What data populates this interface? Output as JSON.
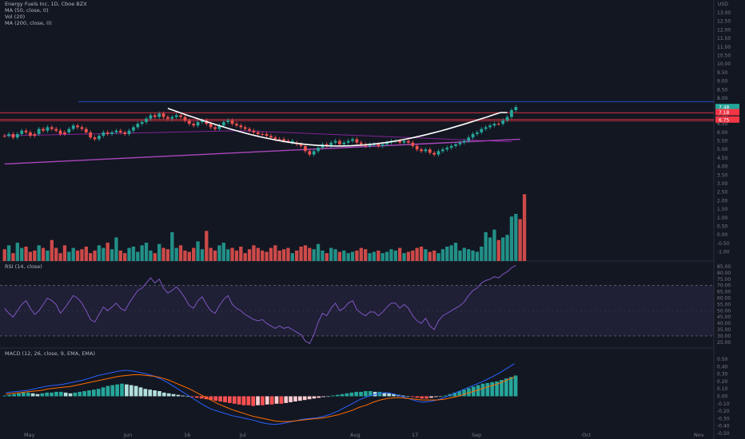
{
  "header": {
    "title": "Energy Fuels Inc, 1D, Cboe BZX",
    "ind_ma50": "MA (50, close, 0)",
    "ind_vol": "Vol (20)",
    "ind_ma200": "MA (200, close, 0)",
    "currency": "USD"
  },
  "rsi_label": "RSI (14, close)",
  "macd_label": "MACD (12, 26, close, 9, EMA, EMA)",
  "colors": {
    "background": "#131722",
    "up": "#26a69a",
    "down": "#ef5350",
    "ma50": "#9c27b0",
    "ma200": "#ab47bc",
    "rsi_line": "#7e57c2",
    "macd_line": "#2962ff",
    "signal_line": "#ff6d00",
    "annotation": "#ffffff"
  },
  "chart_data": [
    {
      "type": "candlestick",
      "x_ticks": [
        "May",
        "Jun",
        "16",
        "Jul",
        "Aug",
        "17",
        "Sep",
        "Oct",
        "Nov"
      ],
      "y_ticks": [
        "13.00",
        "12.50",
        "12.00",
        "11.50",
        "11.00",
        "10.50",
        "10.00",
        "9.50",
        "9.00",
        "8.50",
        "8.00",
        "7.50",
        "7.00",
        "6.50",
        "6.00",
        "5.50",
        "5.00",
        "4.50",
        "4.00",
        "3.50",
        "3.00",
        "2.50",
        "2.00",
        "1.50",
        "1.00",
        "0.50",
        "0.00",
        "-0.50",
        "-1.00"
      ],
      "price_labels": [
        "7.48",
        "7.18",
        "6.75"
      ],
      "horizontal_lines": [
        7.8,
        7.15,
        6.75,
        6.68
      ],
      "closes": [
        5.8,
        5.9,
        5.7,
        5.9,
        6.1,
        6.0,
        5.8,
        5.9,
        6.2,
        6.1,
        6.3,
        6.2,
        6.1,
        5.9,
        6.0,
        6.2,
        6.4,
        6.3,
        6.2,
        6.0,
        5.7,
        5.6,
        5.8,
        6.0,
        5.9,
        6.0,
        6.1,
        6.0,
        5.9,
        6.1,
        6.3,
        6.5,
        6.6,
        6.8,
        7.0,
        6.9,
        7.1,
        6.9,
        6.8,
        6.9,
        7.0,
        6.9,
        6.7,
        6.5,
        6.4,
        6.6,
        6.7,
        6.5,
        6.3,
        6.2,
        6.4,
        6.6,
        6.7,
        6.5,
        6.4,
        6.3,
        6.2,
        6.1,
        6.0,
        5.9,
        5.9,
        5.8,
        5.7,
        5.6,
        5.6,
        5.5,
        5.5,
        5.4,
        5.3,
        5.2,
        4.9,
        4.7,
        4.9,
        5.1,
        5.3,
        5.2,
        5.4,
        5.5,
        5.3,
        5.4,
        5.5,
        5.6,
        5.4,
        5.3,
        5.2,
        5.3,
        5.3,
        5.2,
        5.3,
        5.4,
        5.5,
        5.5,
        5.4,
        5.5,
        5.4,
        5.2,
        5.0,
        4.9,
        5.0,
        4.8,
        4.7,
        4.9,
        5.0,
        5.1,
        5.2,
        5.3,
        5.4,
        5.5,
        5.7,
        5.9,
        6.0,
        6.2,
        6.3,
        6.4,
        6.5,
        6.5,
        6.7,
        6.9,
        7.3,
        7.48
      ],
      "ma50_endpoints": [
        [
          0,
          5.8
        ],
        [
          55,
          6.1
        ],
        [
          118,
          5.45
        ]
      ],
      "ma200_endpoints": [
        [
          0,
          4.15
        ],
        [
          120,
          5.6
        ]
      ],
      "volume_axis": "0.00 - 2.50",
      "volume_scale": 2.5,
      "volumes": [
        0.45,
        0.6,
        0.3,
        0.7,
        0.5,
        0.55,
        0.35,
        0.4,
        0.6,
        0.5,
        0.4,
        0.8,
        0.5,
        0.3,
        0.6,
        0.35,
        0.5,
        0.4,
        0.45,
        0.55,
        0.3,
        0.4,
        0.6,
        0.5,
        0.7,
        0.45,
        0.9,
        0.4,
        0.3,
        0.5,
        0.55,
        0.35,
        0.6,
        0.7,
        0.4,
        0.3,
        0.65,
        0.5,
        0.45,
        1.1,
        0.5,
        0.6,
        0.4,
        0.35,
        0.5,
        0.75,
        0.45,
        1.15,
        0.5,
        0.4,
        0.6,
        0.7,
        0.45,
        0.5,
        0.4,
        0.55,
        0.3,
        0.45,
        0.6,
        0.5,
        0.4,
        0.35,
        0.5,
        0.6,
        0.4,
        0.45,
        0.5,
        0.3,
        0.4,
        0.55,
        0.6,
        0.5,
        0.45,
        0.65,
        0.4,
        0.3,
        0.5,
        0.45,
        0.35,
        0.4,
        0.3,
        0.35,
        0.4,
        0.5,
        0.45,
        0.3,
        0.35,
        0.4,
        0.3,
        0.35,
        0.45,
        0.4,
        0.5,
        0.3,
        0.35,
        0.4,
        0.5,
        0.55,
        0.45,
        0.35,
        0.4,
        0.3,
        0.45,
        0.55,
        0.6,
        0.7,
        0.4,
        0.5,
        0.45,
        0.4,
        0.35,
        0.55,
        1.1,
        0.9,
        1.2,
        0.8,
        0.9,
        1.0,
        1.7,
        1.8,
        1.6,
        2.55
      ],
      "up_days": [
        1,
        3,
        4,
        8,
        10,
        15,
        16,
        22,
        23,
        25,
        26,
        29,
        30,
        31,
        32,
        33,
        34,
        36,
        39,
        40,
        45,
        46,
        50,
        51,
        52,
        67,
        72,
        73,
        74,
        76,
        77,
        79,
        80,
        81,
        85,
        86,
        88,
        89,
        90,
        91,
        93,
        98,
        101,
        102,
        103,
        104,
        105,
        106,
        107,
        108,
        109,
        110,
        111,
        112,
        113,
        114,
        116,
        117,
        118,
        119
      ]
    },
    {
      "type": "line",
      "name": "RSI",
      "y_ticks": [
        "85.00",
        "80.00",
        "75.00",
        "70.00",
        "65.00",
        "60.00",
        "55.00",
        "50.00",
        "45.00",
        "40.00",
        "35.00",
        "30.00",
        "25.00"
      ],
      "band": [
        30,
        70
      ],
      "values": [
        52,
        48,
        45,
        50,
        55,
        58,
        52,
        47,
        50,
        55,
        60,
        58,
        55,
        48,
        52,
        57,
        62,
        60,
        56,
        50,
        43,
        41,
        47,
        53,
        50,
        53,
        56,
        52,
        50,
        56,
        61,
        66,
        68,
        72,
        76,
        72,
        75,
        68,
        64,
        66,
        69,
        65,
        60,
        54,
        52,
        58,
        61,
        55,
        50,
        48,
        54,
        59,
        62,
        55,
        52,
        50,
        47,
        45,
        43,
        42,
        43,
        40,
        38,
        36,
        38,
        36,
        37,
        35,
        33,
        31,
        26,
        24,
        31,
        41,
        48,
        46,
        52,
        56,
        50,
        52,
        56,
        58,
        51,
        48,
        46,
        49,
        49,
        46,
        49,
        53,
        56,
        56,
        52,
        55,
        52,
        46,
        42,
        40,
        44,
        38,
        35,
        42,
        46,
        48,
        50,
        52,
        54,
        57,
        62,
        66,
        68,
        72,
        74,
        75,
        77,
        76,
        79,
        81,
        84,
        86
      ]
    },
    {
      "type": "bar+line",
      "name": "MACD",
      "y_ticks": [
        "0.50",
        "0.40",
        "0.30",
        "0.20",
        "0.10",
        "0.00",
        "-0.10",
        "-0.20",
        "-0.30",
        "-0.40",
        "-0.50"
      ],
      "histogram": [
        0.01,
        0.02,
        0.03,
        0.04,
        0.05,
        0.05,
        0.04,
        0.03,
        0.04,
        0.05,
        0.05,
        0.06,
        0.06,
        0.05,
        0.04,
        0.05,
        0.06,
        0.07,
        0.08,
        0.09,
        0.1,
        0.12,
        0.14,
        0.15,
        0.16,
        0.17,
        0.16,
        0.15,
        0.14,
        0.12,
        0.1,
        0.09,
        0.08,
        0.07,
        0.05,
        0.04,
        0.03,
        0.02,
        0.01,
        0.0,
        -0.01,
        -0.02,
        -0.03,
        -0.04,
        -0.05,
        -0.06,
        -0.07,
        -0.08,
        -0.09,
        -0.1,
        -0.11,
        -0.12,
        -0.12,
        -0.13,
        -0.12,
        -0.12,
        -0.11,
        -0.11,
        -0.1,
        -0.1,
        -0.09,
        -0.08,
        -0.07,
        -0.06,
        -0.05,
        -0.04,
        -0.03,
        -0.02,
        -0.01,
        0.0,
        0.01,
        0.02,
        0.03,
        0.04,
        0.05,
        0.06,
        0.06,
        0.07,
        0.07,
        0.06,
        0.06,
        0.05,
        0.04,
        0.03,
        0.02,
        0.01,
        0.0,
        -0.01,
        -0.02,
        -0.03,
        -0.03,
        -0.02,
        -0.01,
        0.0,
        0.01,
        0.03,
        0.05,
        0.07,
        0.09,
        0.11,
        0.13,
        0.15,
        0.17,
        0.18,
        0.19,
        0.2,
        0.22,
        0.24,
        0.26,
        0.28
      ],
      "macd_line": [
        0.05,
        0.06,
        0.07,
        0.08,
        0.1,
        0.12,
        0.14,
        0.15,
        0.16,
        0.18,
        0.2,
        0.22,
        0.25,
        0.28,
        0.3,
        0.32,
        0.34,
        0.35,
        0.34,
        0.32,
        0.3,
        0.27,
        0.23,
        0.18,
        0.12,
        0.06,
        0.0,
        -0.06,
        -0.12,
        -0.17,
        -0.2,
        -0.23,
        -0.26,
        -0.28,
        -0.3,
        -0.32,
        -0.35,
        -0.37,
        -0.38,
        -0.37,
        -0.35,
        -0.33,
        -0.31,
        -0.3,
        -0.29,
        -0.27,
        -0.24,
        -0.2,
        -0.15,
        -0.1,
        -0.05,
        -0.01,
        0.02,
        0.04,
        0.05,
        0.03,
        0.0,
        -0.03,
        -0.06,
        -0.08,
        -0.07,
        -0.05,
        -0.02,
        0.02,
        0.06,
        0.1,
        0.14,
        0.18,
        0.22,
        0.27,
        0.32,
        0.38,
        0.44
      ],
      "signal_line": [
        0.03,
        0.04,
        0.05,
        0.06,
        0.07,
        0.08,
        0.1,
        0.11,
        0.12,
        0.13,
        0.15,
        0.17,
        0.19,
        0.21,
        0.23,
        0.25,
        0.27,
        0.28,
        0.29,
        0.29,
        0.28,
        0.27,
        0.25,
        0.22,
        0.18,
        0.14,
        0.1,
        0.05,
        0.0,
        -0.05,
        -0.1,
        -0.14,
        -0.18,
        -0.21,
        -0.24,
        -0.27,
        -0.29,
        -0.31,
        -0.33,
        -0.34,
        -0.34,
        -0.33,
        -0.32,
        -0.31,
        -0.3,
        -0.29,
        -0.27,
        -0.25,
        -0.22,
        -0.19,
        -0.15,
        -0.12,
        -0.08,
        -0.05,
        -0.03,
        -0.02,
        -0.02,
        -0.03,
        -0.04,
        -0.05,
        -0.05,
        -0.05,
        -0.04,
        -0.02,
        0.0,
        0.03,
        0.06,
        0.09,
        0.12,
        0.15,
        0.18,
        0.22,
        0.26
      ]
    }
  ]
}
